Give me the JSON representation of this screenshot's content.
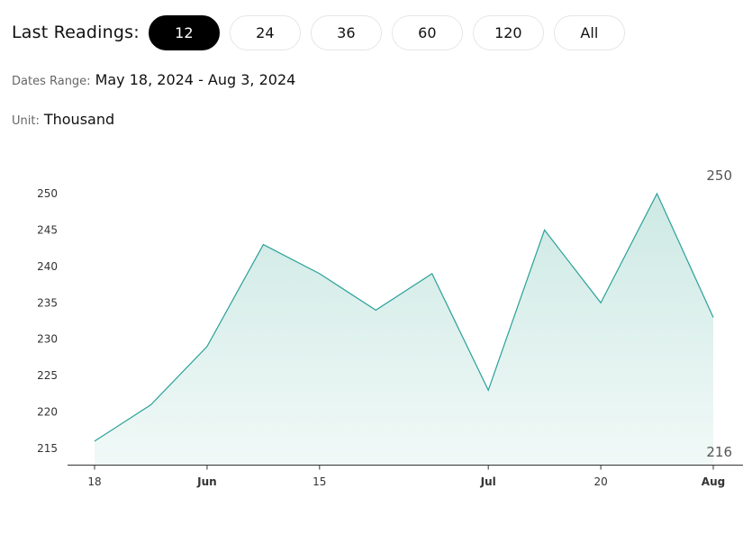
{
  "toolbar": {
    "label": "Last Readings:",
    "buttons": [
      {
        "label": "12",
        "active": true
      },
      {
        "label": "24",
        "active": false
      },
      {
        "label": "36",
        "active": false
      },
      {
        "label": "60",
        "active": false
      },
      {
        "label": "120",
        "active": false
      },
      {
        "label": "All",
        "active": false
      }
    ]
  },
  "meta": {
    "dates_label": "Dates Range:",
    "dates_value": "May 18, 2024 - Aug 3, 2024",
    "unit_label": "Unit:",
    "unit_value": "Thousand"
  },
  "colors": {
    "line": "#2aa198",
    "fill_top": "#cde9e4",
    "fill_bottom": "#f1f9f7",
    "axis": "#333333"
  },
  "chart_data": {
    "type": "area",
    "x": [
      "2024-05-18",
      "2024-05-25",
      "2024-06-01",
      "2024-06-08",
      "2024-06-15",
      "2024-06-22",
      "2024-06-29",
      "2024-07-06",
      "2024-07-13",
      "2024-07-20",
      "2024-07-27",
      "2024-08-03"
    ],
    "values": [
      216,
      221,
      229,
      243,
      239,
      234,
      239,
      223,
      245,
      235,
      250,
      233
    ],
    "ylim": [
      215,
      250
    ],
    "yticks": [
      215,
      220,
      225,
      230,
      235,
      240,
      245,
      250
    ],
    "xticks": [
      {
        "label": "18",
        "x": "2024-05-18",
        "bold": false
      },
      {
        "label": "Jun",
        "x": "2024-06-01",
        "bold": true
      },
      {
        "label": "15",
        "x": "2024-06-15",
        "bold": false
      },
      {
        "label": "Jul",
        "x": "2024-07-06",
        "bold": true
      },
      {
        "label": "20",
        "x": "2024-07-20",
        "bold": false
      },
      {
        "label": "Aug",
        "x": "2024-08-03",
        "bold": true
      }
    ],
    "max_label": "250",
    "min_label": "216",
    "grid": false,
    "legend": "none"
  }
}
